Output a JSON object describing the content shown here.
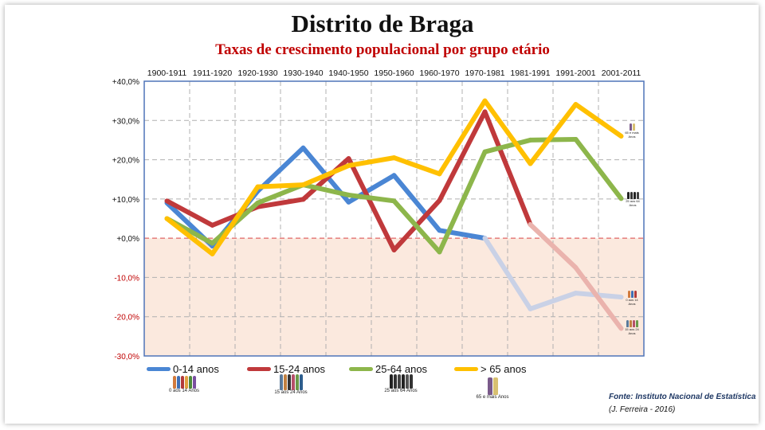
{
  "title": "Distrito de Braga",
  "subtitle": "Taxas de crescimento populacional por grupo etário",
  "source": "Fonte: Instituto Nacional de Estatística",
  "author": "(J. Ferreira - 2016)",
  "thumbnails": [
    {
      "caption": "0 aos 14 Anos"
    },
    {
      "caption": "15 aos 24 Anos"
    },
    {
      "caption": "25 aos 64 Anos"
    },
    {
      "caption": "65 e mais Anos"
    }
  ],
  "side_labels": [
    "65 e mais Anos",
    "25 aos 64 Anos",
    "0 aos 14 Anos",
    "15 aos 24 Anos"
  ],
  "chart_data": {
    "type": "line",
    "categories": [
      "1900-1911",
      "1911-1920",
      "1920-1930",
      "1930-1940",
      "1940-1950",
      "1950-1960",
      "1960-1970",
      "1970-1981",
      "1981-1991",
      "1991-2001",
      "2001-2011"
    ],
    "y_ticks": [
      "+40,0%",
      "+30,0%",
      "+20,0%",
      "+10,0%",
      "+0,0%",
      "-10,0%",
      "-20,0%",
      "-30,0%"
    ],
    "ylim": [
      -30,
      40
    ],
    "grid": true,
    "negative_region_shaded": true,
    "legend_position": "bottom",
    "series": [
      {
        "name": "0-14 anos",
        "color": "#4a86d4",
        "faded_color": "#c9d1e6",
        "values": [
          9,
          -2,
          12,
          23,
          9.2,
          16,
          2,
          0,
          -18,
          -14,
          -15
        ]
      },
      {
        "name": "15-24 anos",
        "color": "#c0393b",
        "faded_color": "#eab3ad",
        "values": [
          9.5,
          3.3,
          8,
          9.9,
          20.3,
          -3,
          9.6,
          32.2,
          3.5,
          -7.5,
          -23
        ]
      },
      {
        "name": "25-64 anos",
        "color": "#8db64b",
        "faded_color": "#8db64b",
        "values": [
          5,
          -1.3,
          9,
          13.6,
          11,
          9.5,
          -3.5,
          22,
          25,
          25.2,
          10.1
        ]
      },
      {
        "name": "> 65 anos",
        "color": "#ffc000",
        "faded_color": "#ffc000",
        "values": [
          5,
          -4,
          13.1,
          13.6,
          18.5,
          20.5,
          16.4,
          35,
          19,
          34.1,
          26
        ]
      }
    ]
  }
}
